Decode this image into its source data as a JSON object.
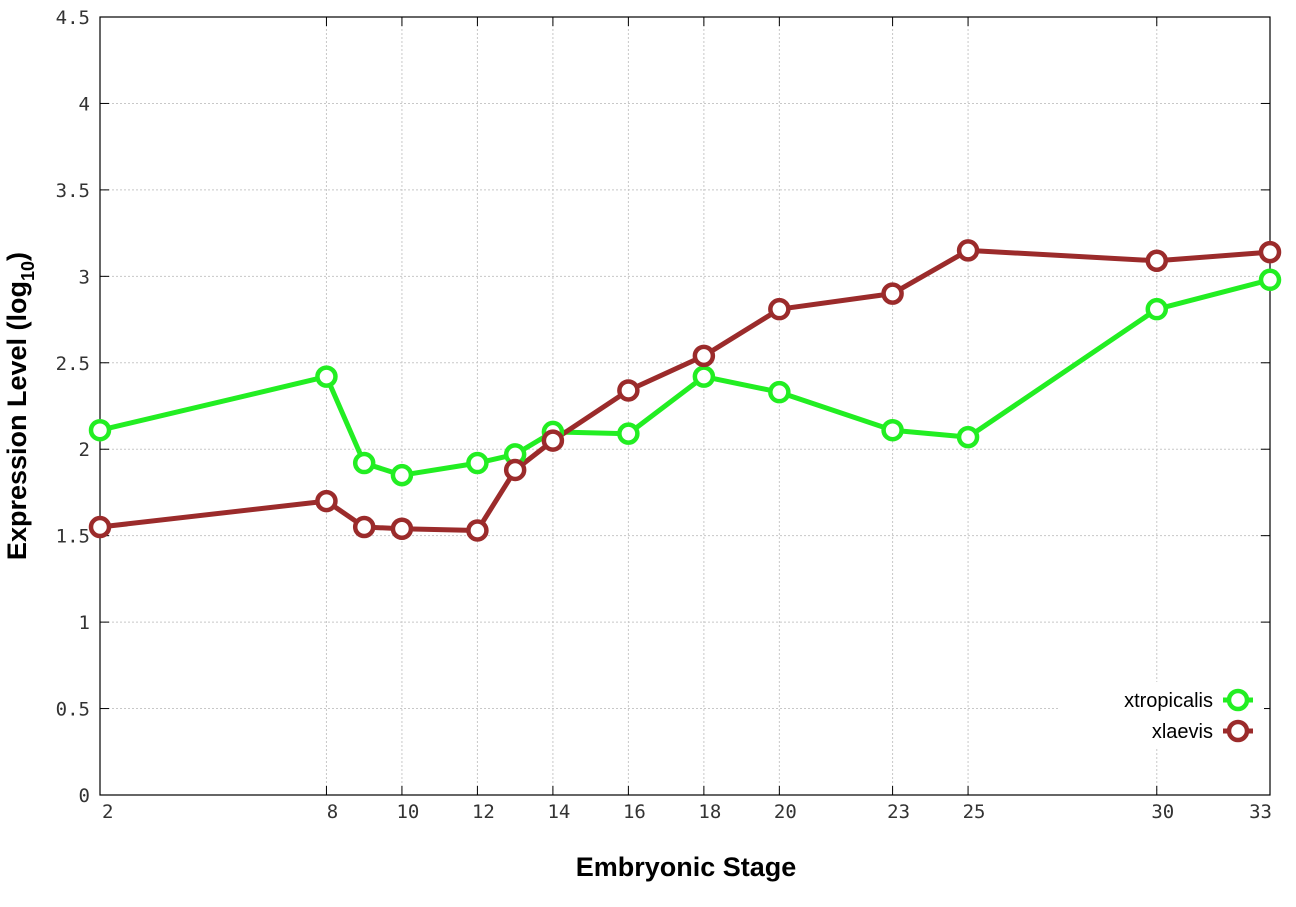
{
  "chart_data": {
    "type": "line",
    "title": "",
    "xlabel": "Embryonic Stage",
    "ylabel": "Expression Level (log",
    "ylabel_sub": "10",
    "ylabel_close": ")",
    "x": [
      2,
      8,
      9,
      10,
      12,
      13,
      14,
      16,
      18,
      20,
      23,
      25,
      30,
      33
    ],
    "x_ticks": [
      "2",
      "8",
      "10",
      "12",
      "14",
      "16",
      "18",
      "20",
      "23",
      "25",
      "30",
      "33"
    ],
    "y_ticks": [
      "0",
      "0.5",
      "1",
      "1.5",
      "2",
      "2.5",
      "3",
      "3.5",
      "4",
      "4.5"
    ],
    "xlim": [
      2,
      33
    ],
    "ylim": [
      0,
      4.5
    ],
    "grid": true,
    "legend_position": "bottom-right",
    "series": [
      {
        "name": "xtropicalis",
        "color": "#22ee22",
        "values": [
          2.11,
          2.42,
          1.92,
          1.85,
          1.92,
          1.97,
          2.1,
          2.09,
          2.42,
          2.33,
          2.11,
          2.07,
          2.81,
          2.98
        ]
      },
      {
        "name": "xlaevis",
        "color": "#9b2b2b",
        "values": [
          1.55,
          1.7,
          1.55,
          1.54,
          1.53,
          1.88,
          2.05,
          2.34,
          2.54,
          2.81,
          2.9,
          3.15,
          3.09,
          3.14
        ]
      }
    ]
  }
}
